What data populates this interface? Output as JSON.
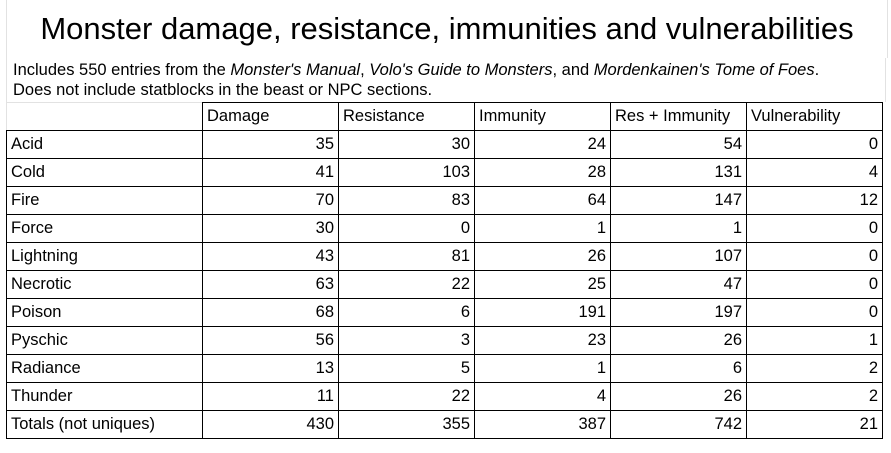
{
  "title": "Monster damage, resistance, immunities and vulnerabilities",
  "description": {
    "line1_prefix": "Includes 550 entries from the ",
    "book1": "Monster's Manual",
    "sep1": ", ",
    "book2": "Volo's Guide to Monsters",
    "sep2": ", and ",
    "book3": "Mordenkainen's Tome of Foes",
    "line1_suffix": ".",
    "line2": "Does not include statblocks in the beast or NPC sections."
  },
  "table": {
    "headers": [
      "",
      "Damage",
      "Resistance",
      "Immunity",
      "Res + Immunity",
      "Vulnerability"
    ],
    "rows": [
      {
        "label": "Acid",
        "values": [
          "35",
          "30",
          "24",
          "54",
          "0"
        ]
      },
      {
        "label": "Cold",
        "values": [
          "41",
          "103",
          "28",
          "131",
          "4"
        ]
      },
      {
        "label": "Fire",
        "values": [
          "70",
          "83",
          "64",
          "147",
          "12"
        ]
      },
      {
        "label": "Force",
        "values": [
          "30",
          "0",
          "1",
          "1",
          "0"
        ]
      },
      {
        "label": "Lightning",
        "values": [
          "43",
          "81",
          "26",
          "107",
          "0"
        ]
      },
      {
        "label": "Necrotic",
        "values": [
          "63",
          "22",
          "25",
          "47",
          "0"
        ]
      },
      {
        "label": "Poison",
        "values": [
          "68",
          "6",
          "191",
          "197",
          "0"
        ]
      },
      {
        "label": "Pyschic",
        "values": [
          "56",
          "3",
          "23",
          "26",
          "1"
        ]
      },
      {
        "label": "Radiance",
        "values": [
          "13",
          "5",
          "1",
          "6",
          "2"
        ]
      },
      {
        "label": "Thunder",
        "values": [
          "11",
          "22",
          "4",
          "26",
          "2"
        ]
      },
      {
        "label": "Totals (not uniques)",
        "values": [
          "430",
          "355",
          "387",
          "742",
          "21"
        ]
      }
    ]
  }
}
